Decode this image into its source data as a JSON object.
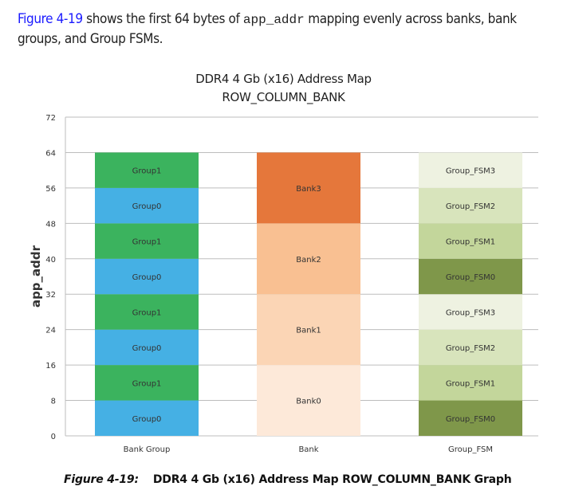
{
  "paragraph": {
    "link": "Figure 4-19",
    "text1": " shows the first 64 bytes of ",
    "code": "app_addr",
    "text2": " mapping evenly across banks, bank groups, and Group FSMs."
  },
  "chart_data": {
    "type": "bar",
    "stacked": true,
    "title": "DDR4 4 Gb (x16) Address Map",
    "subtitle": "ROW_COLUMN_BANK",
    "ylabel": "app_addr",
    "xlabel": "",
    "ylim": [
      0,
      72
    ],
    "yticks": [
      0,
      8,
      16,
      24,
      32,
      40,
      48,
      56,
      64,
      72
    ],
    "grid": true,
    "categories": [
      "Bank Group",
      "Bank",
      "Group_FSM"
    ],
    "stacks": [
      [
        {
          "label": "Group0",
          "from": 0,
          "to": 8,
          "color": "#45b0e4"
        },
        {
          "label": "Group1",
          "from": 8,
          "to": 16,
          "color": "#3bb35e"
        },
        {
          "label": "Group0",
          "from": 16,
          "to": 24,
          "color": "#45b0e4"
        },
        {
          "label": "Group1",
          "from": 24,
          "to": 32,
          "color": "#3bb35e"
        },
        {
          "label": "Group0",
          "from": 32,
          "to": 40,
          "color": "#45b0e4"
        },
        {
          "label": "Group1",
          "from": 40,
          "to": 48,
          "color": "#3bb35e"
        },
        {
          "label": "Group0",
          "from": 48,
          "to": 56,
          "color": "#45b0e4"
        },
        {
          "label": "Group1",
          "from": 56,
          "to": 64,
          "color": "#3bb35e"
        }
      ],
      [
        {
          "label": "Bank0",
          "from": 0,
          "to": 16,
          "color": "#fde9d9"
        },
        {
          "label": "Bank1",
          "from": 16,
          "to": 32,
          "color": "#fbd5b5"
        },
        {
          "label": "Bank2",
          "from": 32,
          "to": 48,
          "color": "#f9c092"
        },
        {
          "label": "Bank3",
          "from": 48,
          "to": 64,
          "color": "#e5773b"
        }
      ],
      [
        {
          "label": "Group_FSM0",
          "from": 0,
          "to": 8,
          "color": "#7f974a"
        },
        {
          "label": "Group_FSM1",
          "from": 8,
          "to": 16,
          "color": "#c3d69b"
        },
        {
          "label": "Group_FSM2",
          "from": 16,
          "to": 24,
          "color": "#d8e4bc"
        },
        {
          "label": "Group_FSM3",
          "from": 24,
          "to": 32,
          "color": "#eef2e1"
        },
        {
          "label": "Group_FSM0",
          "from": 32,
          "to": 40,
          "color": "#7f974a"
        },
        {
          "label": "Group_FSM1",
          "from": 40,
          "to": 48,
          "color": "#c3d69b"
        },
        {
          "label": "Group_FSM2",
          "from": 48,
          "to": 56,
          "color": "#d8e4bc"
        },
        {
          "label": "Group_FSM3",
          "from": 56,
          "to": 64,
          "color": "#eef2e1"
        }
      ]
    ]
  },
  "caption": {
    "label": "Figure 4-19:",
    "text": "DDR4 4 Gb (x16) Address Map ROW_COLUMN_BANK Graph"
  }
}
